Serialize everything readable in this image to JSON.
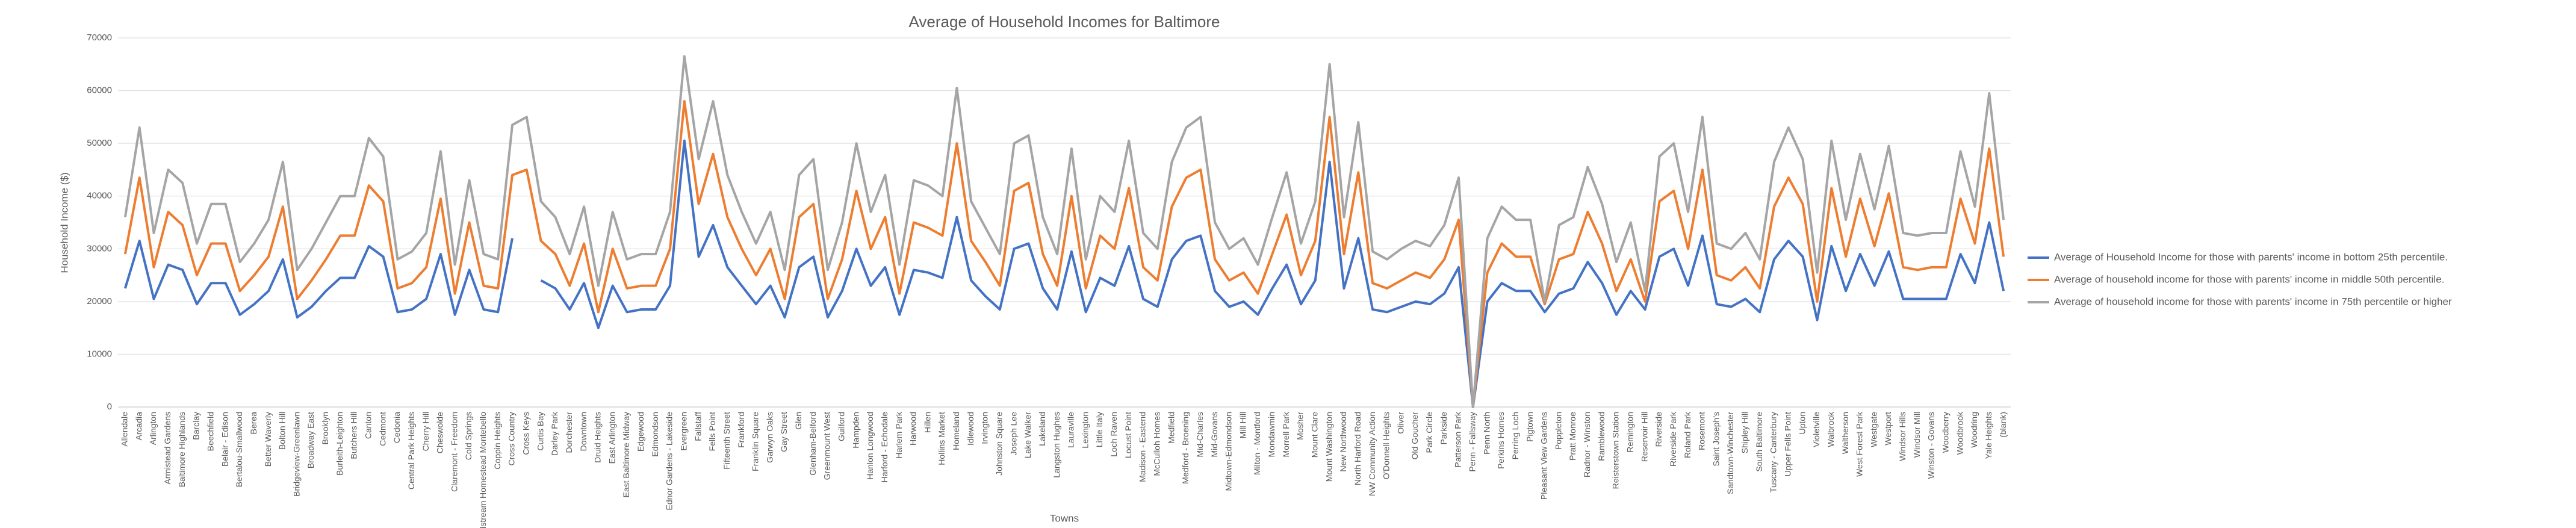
{
  "chart_data": {
    "type": "line",
    "title": "Average of Household Incomes for Baltimore",
    "x_label": "Towns",
    "y_label": "Household Income ($)",
    "ylim": [
      0,
      70000
    ],
    "yticks": [
      0,
      10000,
      20000,
      30000,
      40000,
      50000,
      60000,
      70000
    ],
    "grid": true,
    "legend": "right",
    "categories": [
      "Allendale",
      "Arcadia",
      "Arlington",
      "Armistead Gardens",
      "Baltimore Highlands",
      "Barclay",
      "Beechfield",
      "Belair - Edison",
      "Bertalou-Smallwood",
      "Berea",
      "Better Waverly",
      "Bolton Hill",
      "Bridgeview-Greenlawn",
      "Broadway East",
      "Brooklyn",
      "Burleith-Leighton",
      "Butchers Hill",
      "Canton",
      "Cedmont",
      "Cedonia",
      "Central Park Heights",
      "Cherry Hill",
      "Cheswolde",
      "Claremont - Freedom",
      "Cold Springs",
      "Coldstream Homestead Montebello",
      "Coppin Heights",
      "Cross Country",
      "Cross Keys",
      "Curtis Bay",
      "Darley Park",
      "Dorchester",
      "Downtown",
      "Druid Heights",
      "East Arlington",
      "East Baltimore Midway",
      "Edgewood",
      "Edmondson",
      "Ednor Gardens - Lakeside",
      "Evergreen",
      "Fallstaff",
      "Fells Point",
      "Fifteenth Street",
      "Frankford",
      "Franklin Square",
      "Garwyn Oaks",
      "Gay Street",
      "Glen",
      "Glenham-Belford",
      "Greenmount West",
      "Guilford",
      "Hampden",
      "Hanlon Longwood",
      "Harford - Echodale",
      "Harlem Park",
      "Harwood",
      "Hillen",
      "Hollins Market",
      "Homeland",
      "Idlewood",
      "Irvington",
      "Johnston Square",
      "Joseph Lee",
      "Lake Walker",
      "Lakeland",
      "Langston Hughes",
      "Lauraville",
      "Lexington",
      "Little Italy",
      "Loch Raven",
      "Locust Point",
      "Madison - Eastend",
      "McCulloh Homes",
      "Medfield",
      "Medford - Broening",
      "Mid-Charles",
      "Mid-Govans",
      "Midtown-Edmondson",
      "Mill Hill",
      "Milton - Montford",
      "Mondawmin",
      "Morrell Park",
      "Mosher",
      "Mount Clare",
      "Mount Washington",
      "New Northwood",
      "North Harford Road",
      "NW Community Action",
      "O'Donnell Heights",
      "Oliver",
      "Old Goucher",
      "Park Circle",
      "Parkside",
      "Patterson Park",
      "Penn - Fallsway",
      "Penn North",
      "Perkins Homes",
      "Perring Loch",
      "Pigtown",
      "Pleasant View Gardens",
      "Poppleton",
      "Pratt Monroe",
      "Radnor - Winston",
      "Ramblewood",
      "Reisterstown Station",
      "Remington",
      "Reservoir Hill",
      "Riverside",
      "Riverside Park",
      "Roland Park",
      "Rosemont",
      "Saint Joseph's",
      "Sandtown-Winchester",
      "Shipley Hill",
      "South Baltimore",
      "Tuscany - Canterbury",
      "Upper Fells Point",
      "Upton",
      "Violetville",
      "Walbrook",
      "Waltherson",
      "West Forest Park",
      "Westgate",
      "Westport",
      "Windsor Hills",
      "Windsor Mill",
      "Winston - Govans",
      "Woodberry",
      "Woodbrook",
      "Woodring",
      "Yale Heights",
      "(blank)"
    ],
    "series": [
      {
        "name": "Average of Household Income for those with parents' income in bottom 25th percentile.",
        "color": "#4472c4",
        "values": [
          22500,
          31500,
          20500,
          27000,
          26000,
          19500,
          23500,
          23500,
          17500,
          19500,
          22000,
          28000,
          17000,
          19000,
          22000,
          24500,
          24500,
          30500,
          28500,
          18000,
          18500,
          20500,
          29000,
          17500,
          26000,
          18500,
          18000,
          32000,
          null,
          24000,
          22500,
          18500,
          23500,
          15000,
          23000,
          18000,
          18500,
          18500,
          23000,
          50500,
          28500,
          34500,
          26500,
          23000,
          19500,
          23000,
          17000,
          26500,
          28500,
          17000,
          22000,
          30000,
          23000,
          26500,
          17500,
          26000,
          25500,
          24500,
          36000,
          24000,
          21000,
          18500,
          30000,
          31000,
          22500,
          18500,
          29500,
          18000,
          24500,
          23000,
          30500,
          20500,
          19000,
          28000,
          31500,
          32500,
          22000,
          19000,
          20000,
          17500,
          22500,
          27000,
          19500,
          24000,
          46500,
          22500,
          32000,
          18500,
          18000,
          19000,
          20000,
          19500,
          21500,
          26500,
          0,
          20000,
          23500,
          22000,
          22000,
          18000,
          21500,
          22500,
          27500,
          23500,
          17500,
          22000,
          18500,
          28500,
          30000,
          23000,
          32500,
          19500,
          19000,
          20500,
          18000,
          28000,
          31500,
          28500,
          16500,
          30500,
          22000,
          29000,
          23000,
          29500,
          20500,
          20500,
          20500,
          20500,
          29000,
          23500,
          35000,
          22000
        ]
      },
      {
        "name": "Average of household income for those with parents' income in middle 50th percentile.",
        "color": "#ed7d31",
        "values": [
          29000,
          43500,
          26500,
          37000,
          34500,
          25000,
          31000,
          31000,
          22000,
          25000,
          28500,
          38000,
          20500,
          24000,
          28000,
          32500,
          32500,
          42000,
          39000,
          22500,
          23500,
          26500,
          39500,
          21500,
          35000,
          23000,
          22500,
          44000,
          45000,
          31500,
          29000,
          23000,
          31000,
          18000,
          30000,
          22500,
          23000,
          23000,
          30000,
          58000,
          38500,
          48000,
          36000,
          30000,
          25000,
          30000,
          20500,
          36000,
          38500,
          20500,
          28000,
          41000,
          30000,
          36000,
          21500,
          35000,
          34000,
          32500,
          50000,
          31500,
          27500,
          23000,
          41000,
          42500,
          29000,
          23000,
          40000,
          22500,
          32500,
          30000,
          41500,
          26500,
          24000,
          38000,
          43500,
          45000,
          28000,
          24000,
          25500,
          21500,
          29000,
          36500,
          25000,
          31500,
          55000,
          29000,
          44500,
          23500,
          22500,
          24000,
          25500,
          24500,
          28000,
          35500,
          0,
          25500,
          31000,
          28500,
          28500,
          19500,
          28000,
          29000,
          37000,
          31000,
          22000,
          28000,
          20000,
          39000,
          41000,
          30000,
          45000,
          25000,
          24000,
          26500,
          22500,
          38000,
          43500,
          38500,
          20000,
          41500,
          28500,
          39500,
          30500,
          40500,
          26500,
          26000,
          26500,
          26500,
          39500,
          31000,
          49000,
          28500
        ]
      },
      {
        "name": "Average of household income for those with parents' income in 75th percentile or higher",
        "color": "#a5a5a5",
        "values": [
          36000,
          53000,
          33000,
          45000,
          42500,
          31000,
          38500,
          38500,
          27500,
          31000,
          35500,
          46500,
          26000,
          30000,
          35000,
          40000,
          40000,
          51000,
          47500,
          28000,
          29500,
          33000,
          48500,
          27000,
          43000,
          29000,
          28000,
          53500,
          55000,
          39000,
          36000,
          29000,
          38000,
          23000,
          37000,
          28000,
          29000,
          29000,
          37000,
          66500,
          47000,
          58000,
          44000,
          37000,
          31000,
          37000,
          26000,
          44000,
          47000,
          26000,
          35000,
          50000,
          37000,
          44000,
          27000,
          43000,
          42000,
          40000,
          60500,
          39000,
          34000,
          29000,
          50000,
          51500,
          36000,
          29000,
          49000,
          28000,
          40000,
          37000,
          50500,
          33000,
          30000,
          46500,
          53000,
          55000,
          35000,
          30000,
          32000,
          27000,
          36000,
          44500,
          31000,
          39000,
          65000,
          36000,
          54000,
          29500,
          28000,
          30000,
          31500,
          30500,
          34500,
          43500,
          0,
          32000,
          38000,
          35500,
          35500,
          20000,
          34500,
          36000,
          45500,
          38500,
          27500,
          35000,
          22000,
          47500,
          50000,
          37000,
          55000,
          31000,
          30000,
          33000,
          28000,
          46500,
          53000,
          47000,
          25500,
          50500,
          35500,
          48000,
          37500,
          49500,
          33000,
          32500,
          33000,
          33000,
          48500,
          38000,
          59500,
          35500
        ]
      }
    ]
  }
}
